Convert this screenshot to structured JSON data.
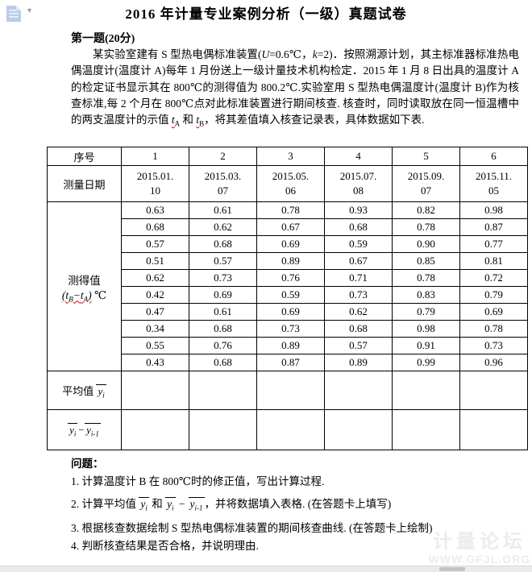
{
  "title": "2016 年计量专业案例分析（一级）真题试卷",
  "section_heading": "第一题(20分)",
  "icons": {
    "document_icon": "document-icon",
    "dropdown_caret": "▾"
  },
  "colors": {
    "spellcheck_red": "#e00000",
    "watermark_gray": "#ececec",
    "icon_blue": "#b9cde8"
  },
  "paragraph": {
    "seg1": "某实验室建有 S 型热电偶标准装置(",
    "u_sym": "U",
    "seg2": "=0.6℃，",
    "k_sym": "k",
    "seg3": "=2)．按照溯源计划，其主标准器标准热电偶温度计(温度计 A)每年 1 月份送上一级计量技术机构检定．2015 年 1 月 8 日出具的温度计 A 的检定证书显示其在 800℃的测得值为 800.2℃.实验室用 S 型热电偶温度计(温度计 B)作为核查标准,每 2 个月在 800℃点对此标准装置进行期间核查. 核查时，同时读取放在同一恒温槽中的两支温度计的示值 ",
    "seg4": " 和 ",
    "seg5": "，将其差值填入核查记录表，具体数据如下表."
  },
  "formulas": {
    "t": "t",
    "sub_a": "A",
    "sub_b": "B",
    "minus": "−",
    "open": "(",
    "close": ")",
    "y": "y",
    "sub_i": "i",
    "sub_i1": "i-1",
    "unit": "℃"
  },
  "table": {
    "index_label": "序号",
    "index_values": [
      "1",
      "2",
      "3",
      "4",
      "5",
      "6"
    ],
    "date_label": "测量日期",
    "dates": [
      "2015.01.10",
      "2015.03.07",
      "2015.05.06",
      "2015.07.08",
      "2015.09.07",
      "2015.11.05"
    ],
    "measured_label": "测得值",
    "avg_label": "平均值",
    "rows": [
      [
        "0.63",
        "0.61",
        "0.78",
        "0.93",
        "0.82",
        "0.98"
      ],
      [
        "0.68",
        "0.62",
        "0.67",
        "0.68",
        "0.78",
        "0.87"
      ],
      [
        "0.57",
        "0.68",
        "0.69",
        "0.59",
        "0.90",
        "0.77"
      ],
      [
        "0.51",
        "0.57",
        "0.89",
        "0.67",
        "0.85",
        "0.81"
      ],
      [
        "0.62",
        "0.73",
        "0.76",
        "0.71",
        "0.78",
        "0.72"
      ],
      [
        "0.42",
        "0.69",
        "0.59",
        "0.73",
        "0.83",
        "0.79"
      ],
      [
        "0.47",
        "0.61",
        "0.69",
        "0.62",
        "0.79",
        "0.69"
      ],
      [
        "0.34",
        "0.68",
        "0.73",
        "0.68",
        "0.98",
        "0.78"
      ],
      [
        "0.55",
        "0.76",
        "0.89",
        "0.57",
        "0.91",
        "0.73"
      ],
      [
        "0.43",
        "0.68",
        "0.87",
        "0.89",
        "0.99",
        "0.96"
      ]
    ],
    "avg_values": [
      "",
      "",
      "",
      "",
      "",
      ""
    ],
    "diff_values": [
      "",
      "",
      "",
      "",
      "",
      ""
    ]
  },
  "questions": {
    "label": "问题：",
    "q1": "1. 计算温度计 B 在 800℃时的修正值，写出计算过程.",
    "q2_prefix": "2. 计算平均值 ",
    "q2_mid": " 和 ",
    "q2_minus": " − ",
    "q2_suffix": "，并将数据填入表格. (在答题卡上填写)",
    "q3": "3. 根据核查数据绘制 S 型热电偶标准装置的期间核查曲线. (在答题卡上绘制)",
    "q4": "4. 判断核查结果是否合格，并说明理由."
  },
  "watermark": {
    "line1": "计量论坛",
    "line2": "WWW.GFJL.ORG"
  }
}
